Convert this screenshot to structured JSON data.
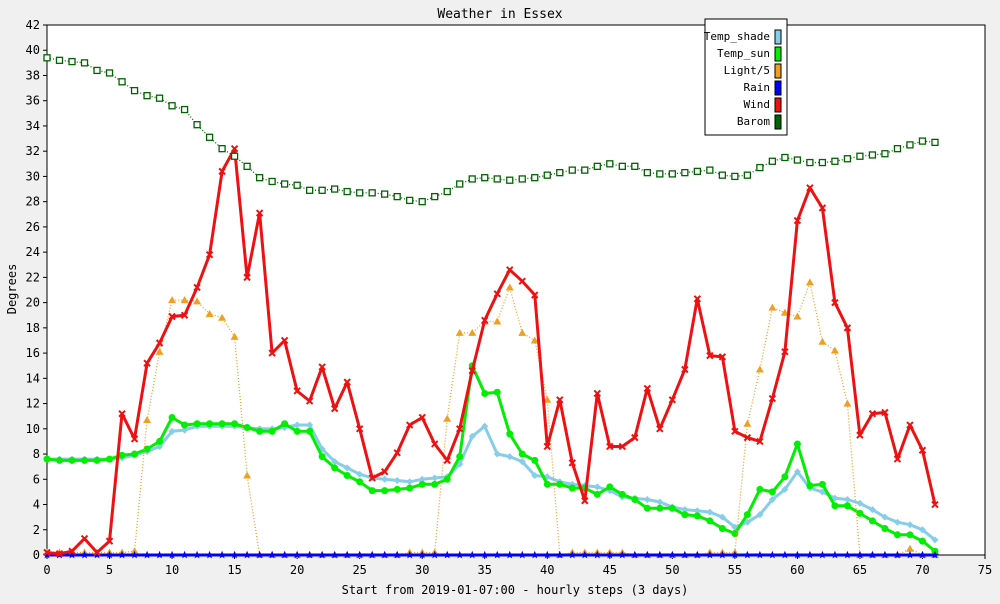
{
  "chart_data": {
    "type": "line",
    "title": "Weather in Essex",
    "xlabel": "Start from 2019-01-07:00 - hourly steps (3 days)",
    "ylabel": "Degrees",
    "xlim": [
      0,
      75
    ],
    "ylim": [
      0,
      42
    ],
    "xticks": [
      0,
      5,
      10,
      15,
      20,
      25,
      30,
      35,
      40,
      45,
      50,
      55,
      60,
      65,
      70,
      75
    ],
    "yticks": [
      0,
      2,
      4,
      6,
      8,
      10,
      12,
      14,
      16,
      18,
      20,
      22,
      24,
      26,
      28,
      30,
      32,
      34,
      36,
      38,
      40,
      42
    ],
    "grid": true,
    "legend_position": "top-right",
    "series": [
      {
        "name": "Temp_shade",
        "color": "#87cde8",
        "marker": "diamond",
        "values": [
          7.6,
          7.6,
          7.6,
          7.6,
          7.6,
          7.6,
          7.7,
          7.9,
          8.2,
          8.6,
          9.8,
          9.9,
          10.2,
          10.2,
          10.2,
          10.2,
          10.1,
          10.0,
          10.0,
          10.1,
          10.3,
          10.3,
          8.4,
          7.4,
          6.9,
          6.4,
          6.1,
          6.0,
          5.9,
          5.8,
          6.0,
          6.1,
          6.2,
          7.2,
          9.4,
          10.2,
          8.0,
          7.8,
          7.4,
          6.3,
          6.2,
          5.8,
          5.6,
          5.5,
          5.4,
          5.1,
          4.6,
          4.5,
          4.4,
          4.2,
          3.8,
          3.6,
          3.5,
          3.4,
          3.0,
          2.2,
          2.6,
          3.2,
          4.4,
          5.2,
          6.6,
          5.3,
          5.0,
          4.5,
          4.4,
          4.1,
          3.6,
          3.0,
          2.6,
          2.4,
          2.0,
          1.2
        ]
      },
      {
        "name": "Temp_sun",
        "color": "#00ee00",
        "marker": "circle",
        "values": [
          7.6,
          7.5,
          7.5,
          7.5,
          7.5,
          7.6,
          7.9,
          8.0,
          8.4,
          9.0,
          10.9,
          10.3,
          10.4,
          10.4,
          10.4,
          10.4,
          10.1,
          9.8,
          9.8,
          10.4,
          9.8,
          9.8,
          7.8,
          6.9,
          6.3,
          5.8,
          5.1,
          5.1,
          5.2,
          5.3,
          5.6,
          5.6,
          6.0,
          7.8,
          15.0,
          12.8,
          12.9,
          9.6,
          8.0,
          7.5,
          5.6,
          5.6,
          5.3,
          5.3,
          4.8,
          5.4,
          4.8,
          4.4,
          3.7,
          3.7,
          3.7,
          3.2,
          3.1,
          2.7,
          2.1,
          1.7,
          3.2,
          5.2,
          5.0,
          6.2,
          8.8,
          5.5,
          5.6,
          3.9,
          3.9,
          3.3,
          2.7,
          2.1,
          1.6,
          1.6,
          1.1,
          0.3
        ]
      },
      {
        "name": "Light/5",
        "color": "#f0a020",
        "marker": "triangle",
        "values": [
          0.2,
          0.2,
          0.2,
          0.2,
          0.2,
          0.2,
          0.2,
          0.3,
          10.7,
          16.1,
          20.2,
          20.2,
          20.1,
          19.1,
          18.8,
          17.3,
          6.3,
          0,
          0,
          0,
          0,
          0,
          0,
          0,
          0,
          0,
          0,
          0,
          0,
          0.2,
          0.2,
          0.2,
          10.8,
          17.6,
          17.6,
          18.5,
          18.5,
          21.2,
          17.6,
          17.0,
          12.3,
          0,
          0.2,
          0.2,
          0.2,
          0.2,
          0.2,
          0,
          0,
          0,
          0,
          0,
          0,
          0.2,
          0.2,
          0.2,
          10.4,
          14.7,
          19.6,
          19.2,
          18.9,
          21.6,
          16.9,
          16.2,
          12.0,
          0,
          0,
          0,
          0,
          0.5,
          0,
          0
        ]
      },
      {
        "name": "Rain",
        "color": "#0000ff",
        "marker": "star",
        "values": [
          0,
          0,
          0,
          0,
          0,
          0,
          0,
          0,
          0,
          0,
          0,
          0,
          0,
          0,
          0,
          0,
          0,
          0,
          0,
          0,
          0,
          0,
          0,
          0,
          0,
          0,
          0,
          0,
          0,
          0,
          0,
          0,
          0,
          0,
          0,
          0,
          0,
          0,
          0,
          0,
          0,
          0,
          0,
          0,
          0,
          0,
          0,
          0,
          0,
          0,
          0,
          0,
          0,
          0,
          0,
          0,
          0,
          0,
          0,
          0,
          0,
          0,
          0,
          0,
          0,
          0,
          0,
          0,
          0,
          0,
          0,
          0
        ]
      },
      {
        "name": "Wind",
        "color": "#ee1111",
        "marker": "cross",
        "values": [
          0.2,
          0.1,
          0.3,
          1.3,
          0.2,
          1.1,
          11.2,
          9.2,
          15.2,
          16.8,
          18.9,
          19.0,
          21.2,
          23.8,
          30.4,
          32.2,
          22.0,
          27.1,
          16.0,
          17.0,
          13.0,
          12.2,
          14.9,
          11.6,
          13.7,
          10.0,
          6.1,
          6.6,
          8.1,
          10.3,
          10.9,
          8.8,
          7.5,
          10.0,
          14.6,
          18.6,
          20.7,
          22.6,
          21.7,
          20.6,
          8.6,
          12.3,
          7.3,
          4.3,
          12.8,
          8.6,
          8.6,
          9.3,
          13.2,
          10.0,
          12.3,
          14.7,
          20.3,
          15.8,
          15.7,
          9.8,
          9.3,
          9.0,
          12.4,
          16.1,
          26.5,
          29.1,
          27.5,
          20.0,
          18.0,
          9.5,
          11.2,
          11.3,
          7.6,
          10.3,
          8.3,
          4.0
        ]
      },
      {
        "name": "Barom",
        "color": "#006400",
        "marker": "square",
        "values": [
          39.4,
          39.2,
          39.1,
          39.0,
          38.4,
          38.2,
          37.5,
          36.8,
          36.4,
          36.2,
          35.6,
          35.3,
          34.1,
          33.1,
          32.2,
          31.6,
          30.8,
          29.9,
          29.6,
          29.4,
          29.3,
          28.9,
          28.9,
          29.0,
          28.8,
          28.7,
          28.7,
          28.6,
          28.4,
          28.1,
          28.0,
          28.4,
          28.8,
          29.4,
          29.8,
          29.9,
          29.8,
          29.7,
          29.8,
          29.9,
          30.1,
          30.3,
          30.5,
          30.5,
          30.8,
          31.0,
          30.8,
          30.8,
          30.3,
          30.2,
          30.2,
          30.3,
          30.4,
          30.5,
          30.1,
          30.0,
          30.1,
          30.7,
          31.2,
          31.5,
          31.3,
          31.1,
          31.1,
          31.2,
          31.4,
          31.6,
          31.7,
          31.8,
          32.2,
          32.5,
          32.8,
          32.7
        ]
      }
    ]
  }
}
